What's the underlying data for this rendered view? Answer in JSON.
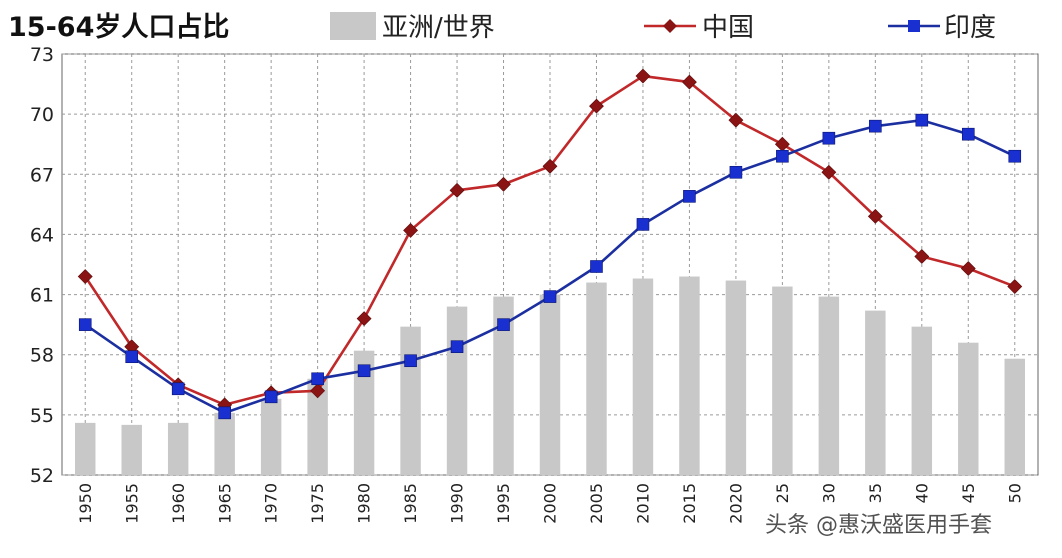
{
  "chart_data": {
    "type": "bar",
    "title": "15-64岁人口占比",
    "categories": [
      "1950",
      "1955",
      "1960",
      "1965",
      "1970",
      "1975",
      "1980",
      "1985",
      "1990",
      "1995",
      "2000",
      "2005",
      "2010",
      "2015",
      "2020",
      "2025",
      "2030",
      "2035",
      "2040",
      "2045",
      "2050"
    ],
    "category_labels_shown": [
      "1950",
      "1955",
      "1960",
      "1965",
      "1970",
      "1975",
      "1980",
      "1985",
      "1990",
      "1995",
      "2000",
      "2005",
      "2010",
      "2015",
      "2020",
      "25",
      "30",
      "35",
      "40",
      "45",
      "50"
    ],
    "y_ticks": [
      52,
      55,
      58,
      61,
      64,
      67,
      70,
      73
    ],
    "ylim": [
      52,
      73
    ],
    "grid": true,
    "legend_position": "top",
    "series": [
      {
        "name": "亚洲/世界",
        "type": "bar",
        "color": "#c8c8c8",
        "values": [
          54.6,
          54.5,
          54.6,
          55.1,
          55.8,
          56.8,
          58.2,
          59.4,
          60.4,
          60.9,
          61.0,
          61.6,
          61.8,
          61.9,
          61.7,
          61.4,
          60.9,
          60.2,
          59.4,
          58.6,
          57.8
        ]
      },
      {
        "name": "中国",
        "type": "line",
        "color": "#c0282a",
        "marker": "diamond",
        "values": [
          61.9,
          58.4,
          56.5,
          55.5,
          56.1,
          56.2,
          59.8,
          64.2,
          66.2,
          66.5,
          67.4,
          70.4,
          71.9,
          71.6,
          69.7,
          68.5,
          67.1,
          64.9,
          62.9,
          62.3,
          61.4
        ]
      },
      {
        "name": "印度",
        "type": "line",
        "color": "#1c2fa0",
        "marker": "square",
        "values": [
          59.5,
          57.9,
          56.3,
          55.1,
          55.9,
          56.8,
          57.2,
          57.7,
          58.4,
          59.5,
          60.9,
          62.4,
          64.5,
          65.9,
          67.1,
          67.9,
          68.8,
          69.4,
          69.7,
          69.0,
          67.9
        ]
      }
    ]
  },
  "watermark": "头条 @惠沃盛医用手套"
}
